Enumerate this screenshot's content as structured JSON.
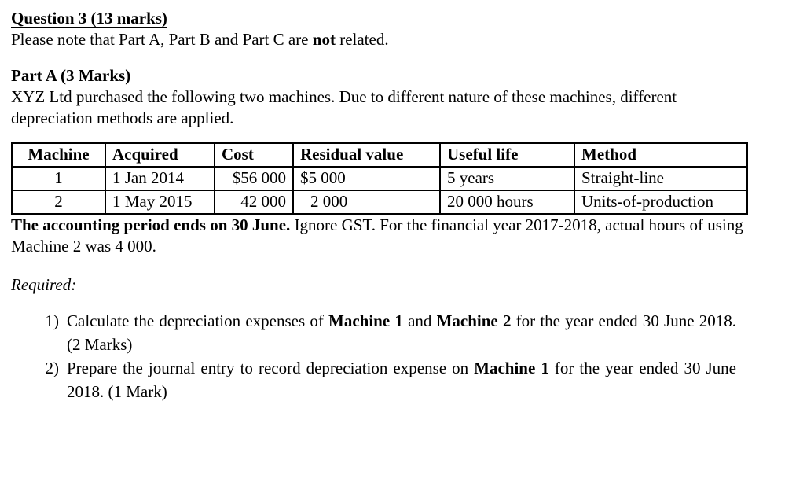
{
  "page": {
    "heading": "Question 3 (13 marks)",
    "note": {
      "pre": "Please note that Part A, Part B and Part C are ",
      "emph": "not",
      "post": " related."
    },
    "part_a_heading": "Part A (3 Marks)",
    "intro_paragraph": "XYZ Ltd purchased the following two machines. Due to different nature of these machines, different depreciation methods are applied.",
    "table": {
      "headers": [
        "Machine",
        "Acquired",
        "Cost",
        "Residual value",
        "Useful life",
        "Method"
      ],
      "rows": [
        [
          "1",
          "1 Jan 2014",
          "$56 000",
          "$5 000",
          "5 years",
          "Straight-line"
        ],
        [
          "2",
          "1 May 2015",
          "42 000",
          "2 000",
          "20 000 hours",
          "Units-of-production"
        ]
      ]
    },
    "accounting_note": {
      "bold": "The accounting period ends on 30 June.",
      "rest": " Ignore GST. For the financial year 2017-2018, actual hours of using Machine 2 was 4 000."
    },
    "required_label": "Required:",
    "tasks": [
      {
        "number": "1)",
        "segments": [
          {
            "text": "Calculate the depreciation expenses of ",
            "bold": false
          },
          {
            "text": "Machine 1",
            "bold": true
          },
          {
            "text": " and ",
            "bold": false
          },
          {
            "text": "Machine 2",
            "bold": true
          },
          {
            "text": " for the year ended 30 June 2018. (2 Marks)",
            "bold": false
          }
        ]
      },
      {
        "number": "2)",
        "segments": [
          {
            "text": "Prepare the journal entry to record depreciation expense on ",
            "bold": false
          },
          {
            "text": "Machine 1",
            "bold": true
          },
          {
            "text": " for the year ended 30 June 2018. (1 Mark)",
            "bold": false
          }
        ]
      }
    ]
  }
}
